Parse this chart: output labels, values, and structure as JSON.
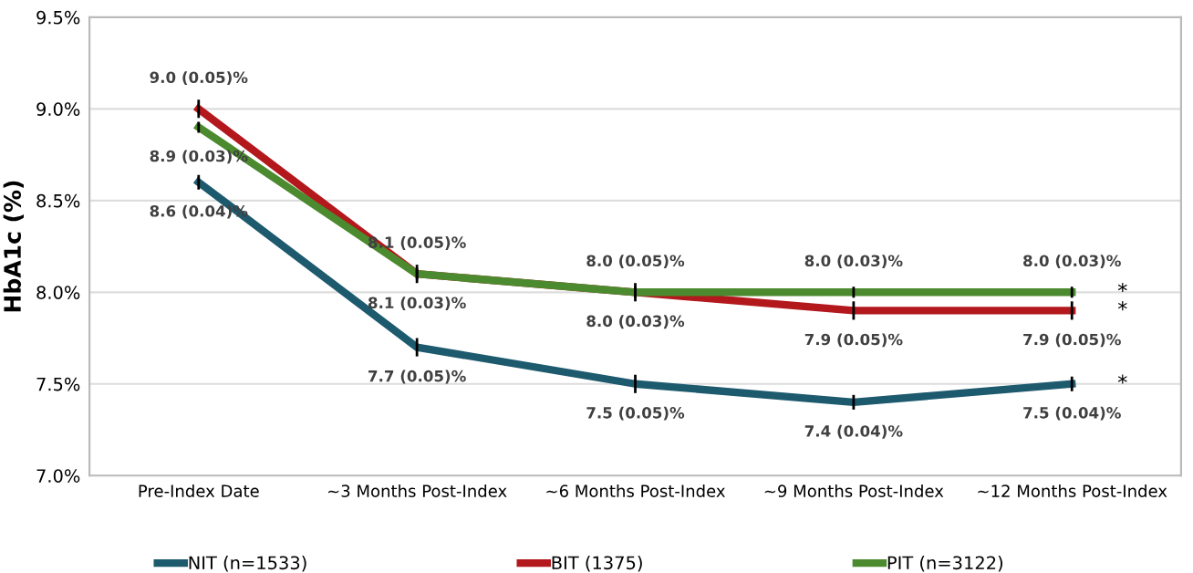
{
  "chart_data": {
    "type": "line",
    "ylabel": "HbA1c (%)",
    "categories": [
      "Pre-Index Date",
      "~3 Months Post-Index",
      "~6 Months Post-Index",
      "~9 Months Post-Index",
      "~12 Months Post-Index"
    ],
    "series": [
      {
        "name": "NIT (n=1533)",
        "color": "#1d5a6e",
        "values": [
          8.6,
          7.7,
          7.5,
          7.4,
          7.5
        ],
        "errors": [
          0.04,
          0.05,
          0.05,
          0.04,
          0.04
        ],
        "value_labels": [
          "8.6 (0.04)%",
          "7.7 (0.05)%",
          "7.5 (0.05)%",
          "7.4 (0.04)%",
          "7.5 (0.04)%"
        ]
      },
      {
        "name": "BIT (1375)",
        "color": "#b3181c",
        "values": [
          9.0,
          8.1,
          8.0,
          7.9,
          7.9
        ],
        "errors": [
          0.05,
          0.05,
          0.05,
          0.05,
          0.05
        ],
        "value_labels": [
          "9.0 (0.05)%",
          "8.1 (0.05)%",
          "8.0 (0.05)%",
          "7.9 (0.05)%",
          "7.9 (0.05)%"
        ]
      },
      {
        "name": "PIT (n=3122)",
        "color": "#4b8a2e",
        "values": [
          8.9,
          8.1,
          8.0,
          8.0,
          8.0
        ],
        "errors": [
          0.03,
          0.03,
          0.03,
          0.03,
          0.03
        ],
        "value_labels": [
          "8.9 (0.03)%",
          "8.1 (0.03)%",
          "8.0 (0.03)%",
          "8.0 (0.03)%",
          "8.0 (0.03)%"
        ]
      }
    ],
    "ylim": [
      7.0,
      9.5
    ],
    "yticks": [
      {
        "value": 7.0,
        "label": "7.0%"
      },
      {
        "value": 7.5,
        "label": "7.5%"
      },
      {
        "value": 8.0,
        "label": "8.0%"
      },
      {
        "value": 8.5,
        "label": "8.5%"
      },
      {
        "value": 9.0,
        "label": "9.0%"
      },
      {
        "value": 9.5,
        "label": "9.5%"
      }
    ],
    "grid": "y",
    "legend": "bottom",
    "marker": "none",
    "line_style": "solid",
    "annotations": [
      {
        "text": "*",
        "x": "~12 Months Post-Index",
        "y": 8.0
      },
      {
        "text": "*",
        "x": "~12 Months Post-Index",
        "y": 7.9
      },
      {
        "text": "*",
        "x": "~12 Months Post-Index",
        "y": 7.5
      }
    ]
  }
}
